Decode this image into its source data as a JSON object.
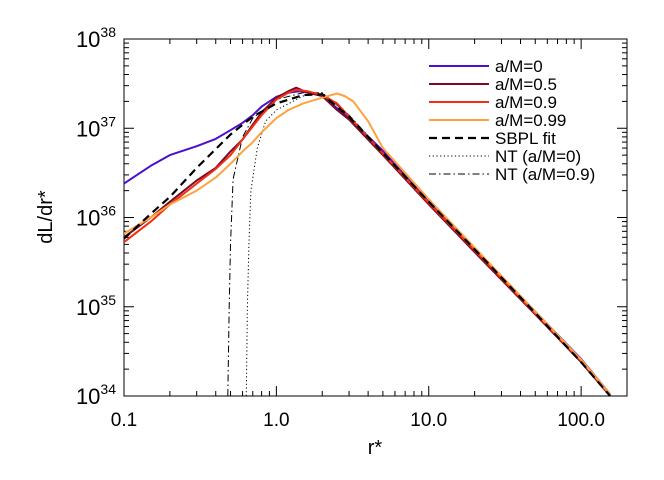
{
  "chart_data": {
    "type": "line",
    "title": "",
    "xlabel": "r*",
    "ylabel": "dL/dr*",
    "xscale": "log",
    "yscale": "log",
    "xlim": [
      0.1,
      200
    ],
    "ylim": [
      1e+34,
      1e+38
    ],
    "grid": false,
    "legend_position": "top-right",
    "x_tick_labels": [
      "0.1",
      "1.0",
      "10.0",
      "100.0"
    ],
    "x_tick_values": [
      0.1,
      1,
      10,
      100
    ],
    "y_tick_labels": [
      {
        "base": "10",
        "exp": "34"
      },
      {
        "base": "10",
        "exp": "35"
      },
      {
        "base": "10",
        "exp": "36"
      },
      {
        "base": "10",
        "exp": "37"
      },
      {
        "base": "10",
        "exp": "38"
      }
    ],
    "y_tick_values": [
      1e+34,
      1e+35,
      1e+36,
      1e+37,
      1e+38
    ],
    "series": [
      {
        "name": "a/M=0",
        "color": "#4a0fd0",
        "style": "solid",
        "x": [
          0.1,
          0.15,
          0.2,
          0.3,
          0.4,
          0.5,
          0.6,
          0.7,
          0.8,
          1.0,
          1.2,
          1.4,
          1.7,
          2,
          3,
          5,
          10,
          20,
          50,
          100,
          155
        ],
        "y": [
          2.4e+36,
          3.8e+36,
          5e+36,
          6.3e+36,
          7.6e+36,
          9.5e+36,
          1.15e+37,
          1.4e+37,
          1.75e+37,
          2.25e+37,
          2.5e+37,
          2.6e+37,
          2.5e+37,
          2.3e+37,
          1.3e+37,
          5.6e+36,
          1.55e+36,
          4.5e+35,
          8.8e+34,
          2.6e+34,
          1.05e+34
        ]
      },
      {
        "name": "a/M=0.5",
        "color": "#7a0a26",
        "style": "solid",
        "x": [
          0.1,
          0.15,
          0.2,
          0.3,
          0.4,
          0.5,
          0.6,
          0.7,
          0.8,
          1.0,
          1.2,
          1.35,
          1.6,
          2,
          2.5,
          3,
          5,
          10,
          20,
          50,
          100,
          155
        ],
        "y": [
          6e+35,
          1e+36,
          1.5e+36,
          2.6e+36,
          3.6e+36,
          5.5e+36,
          7.5e+36,
          1.1e+37,
          1.5e+37,
          2.2e+37,
          2.6e+37,
          2.85e+37,
          2.5e+37,
          2.3e+37,
          1.6e+37,
          1.25e+37,
          5e+36,
          1.4e+36,
          4.1e+35,
          8.2e+34,
          2.4e+34,
          1e+34
        ]
      },
      {
        "name": "a/M=0.9",
        "color": "#f2300f",
        "style": "solid",
        "x": [
          0.1,
          0.15,
          0.2,
          0.3,
          0.4,
          0.5,
          0.6,
          0.7,
          0.8,
          1.0,
          1.2,
          1.35,
          1.6,
          2,
          2.5,
          3,
          5,
          10,
          20,
          50,
          100,
          155
        ],
        "y": [
          5.3e+35,
          9e+35,
          1.4e+36,
          2.4e+36,
          3.5e+36,
          5e+36,
          7.5e+36,
          1.05e+37,
          1.4e+37,
          2.1e+37,
          2.5e+37,
          2.7e+37,
          2.6e+37,
          2.35e+37,
          1.9e+37,
          1.35e+37,
          5.2e+36,
          1.45e+36,
          4.3e+35,
          8.4e+34,
          2.5e+34,
          1.02e+34
        ]
      },
      {
        "name": "a/M=0.99",
        "color": "#ffa23e",
        "style": "solid",
        "x": [
          0.1,
          0.15,
          0.2,
          0.3,
          0.4,
          0.5,
          0.6,
          0.7,
          0.8,
          1.0,
          1.2,
          1.5,
          2,
          2.5,
          2.8,
          3.2,
          4,
          5,
          10,
          20,
          50,
          100,
          155
        ],
        "y": [
          6.6e+35,
          1e+36,
          1.4e+36,
          2e+36,
          2.8e+36,
          4e+36,
          5.5e+36,
          7e+36,
          9e+36,
          1.3e+37,
          1.6e+37,
          1.9e+37,
          2.2e+37,
          2.45e+37,
          2.3e+37,
          2e+37,
          1.2e+37,
          6e+36,
          1.6e+36,
          4.6e+35,
          8.8e+34,
          2.55e+34,
          1.05e+34
        ]
      },
      {
        "name": "SBPL fit",
        "color": "#000000",
        "style": "dashed",
        "x": [
          0.1,
          0.15,
          0.2,
          0.3,
          0.5,
          0.7,
          1.0,
          1.5,
          2,
          3,
          5,
          10,
          20,
          50,
          100,
          155
        ],
        "y": [
          5.8e+35,
          1.1e+36,
          1.7e+36,
          3.6e+36,
          8.5e+36,
          1.35e+37,
          1.9e+37,
          2.35e+37,
          2.4e+37,
          1.35e+37,
          5.3e+36,
          1.5e+36,
          4.4e+35,
          8.5e+34,
          2.4e+34,
          1e+34
        ]
      },
      {
        "name": "NT (a/M=0)",
        "color": "#000000",
        "style": "dotted",
        "x": [
          0.635,
          0.645,
          0.66,
          0.68,
          0.75,
          0.85,
          1.0,
          1.5,
          2,
          3,
          5,
          10,
          20,
          50,
          100,
          155
        ],
        "y": [
          1e+34,
          1e+35,
          5e+35,
          2e+36,
          6e+36,
          1.2e+37,
          1.6e+37,
          2.3e+37,
          2.5e+37,
          1.4e+37,
          5.4e+36,
          1.5e+36,
          4.4e+35,
          8.5e+34,
          2.4e+34,
          1e+34
        ]
      },
      {
        "name": "NT (a/M=0.9)",
        "color": "#000000",
        "style": "dashdot",
        "x": [
          0.48,
          0.49,
          0.5,
          0.52,
          0.6,
          0.7,
          1.0,
          1.5,
          2,
          3,
          5,
          10,
          20,
          50,
          100,
          155
        ],
        "y": [
          1e+34,
          1e+35,
          5e+35,
          2.7e+36,
          8e+36,
          1.3e+37,
          2.1e+37,
          2.5e+37,
          2.5e+37,
          1.4e+37,
          5.4e+36,
          1.5e+36,
          4.4e+35,
          8.5e+34,
          2.4e+34,
          1e+34
        ]
      }
    ]
  }
}
